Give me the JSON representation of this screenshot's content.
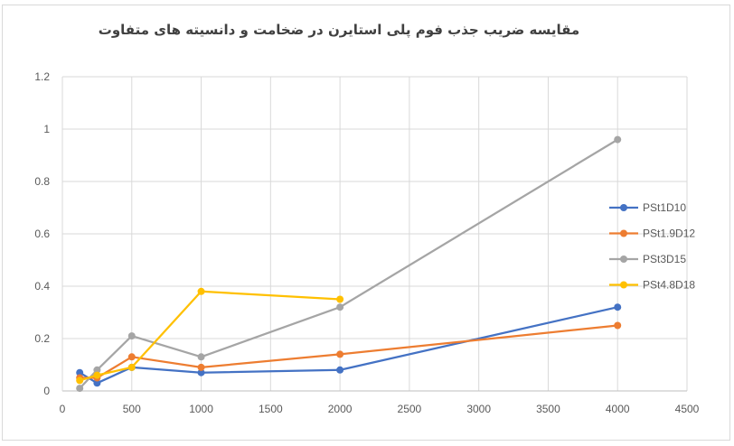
{
  "chart_data": {
    "type": "line",
    "title": "مقایسه ضریب جذب فوم پلی استایرن در ضخامت و دانسیته های متفاوت",
    "xlabel": "",
    "ylabel": "",
    "xlim": [
      0,
      4500
    ],
    "ylim": [
      0,
      1.2
    ],
    "x_ticks": [
      "0",
      "500",
      "1000",
      "1500",
      "2000",
      "2500",
      "3000",
      "3500",
      "4000",
      "4500"
    ],
    "y_ticks": [
      "0",
      "0.2",
      "0.4",
      "0.6",
      "0.8",
      "1",
      "1.2"
    ],
    "grid": true,
    "legend_position": "right",
    "series": [
      {
        "name": "PSt1D10",
        "color": "#4472C4",
        "x": [
          125,
          250,
          500,
          1000,
          2000,
          4000
        ],
        "values": [
          0.07,
          0.03,
          0.09,
          0.07,
          0.08,
          0.32
        ]
      },
      {
        "name": "PSt1.9D12",
        "color": "#ED7D31",
        "x": [
          125,
          250,
          500,
          1000,
          2000,
          4000
        ],
        "values": [
          0.05,
          0.05,
          0.13,
          0.09,
          0.14,
          0.25
        ]
      },
      {
        "name": "PSt3D15",
        "color": "#A5A5A5",
        "x": [
          125,
          250,
          500,
          1000,
          2000,
          4000
        ],
        "values": [
          0.01,
          0.08,
          0.21,
          0.13,
          0.32,
          0.96
        ]
      },
      {
        "name": "PSt4.8D18",
        "color": "#FFC000",
        "x": [
          125,
          250,
          500,
          1000,
          2000
        ],
        "values": [
          0.04,
          0.06,
          0.09,
          0.38,
          0.35
        ]
      }
    ]
  }
}
